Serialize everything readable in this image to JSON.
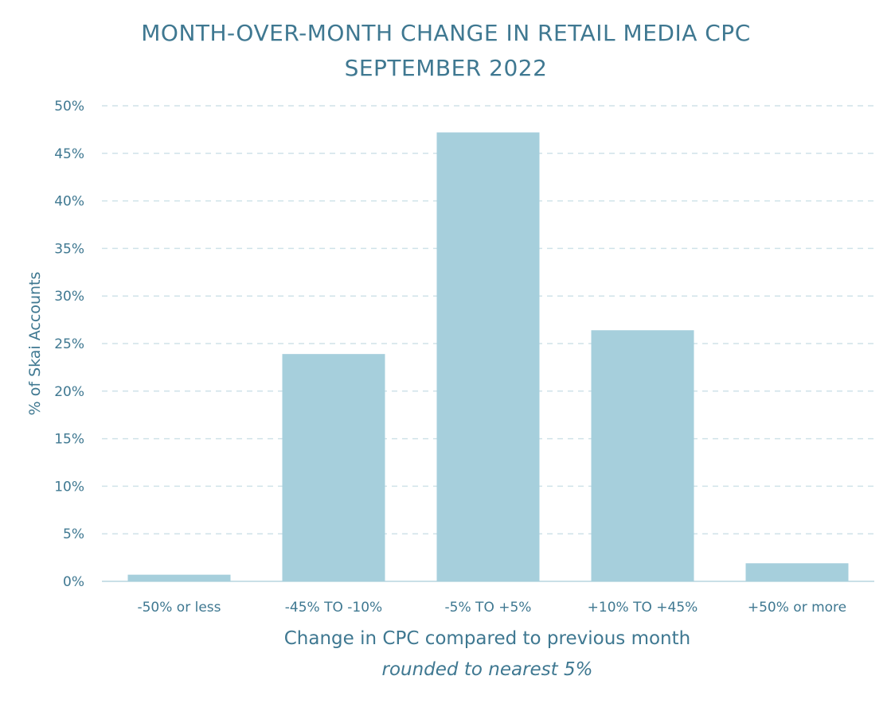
{
  "chart_data": {
    "type": "bar",
    "title": "MONTH-OVER-MONTH CHANGE IN RETAIL MEDIA CPC",
    "subtitle": "SEPTEMBER 2022",
    "xlabel": "Change in CPC compared to previous month",
    "xlabel_note": "rounded to nearest 5%",
    "ylabel": "% of Skai Accounts",
    "categories": [
      "-50% or less",
      "-45% TO -10%",
      "-5% TO +5%",
      "+10% TO +45%",
      "+50% or more"
    ],
    "values": [
      0.7,
      23.9,
      47.2,
      26.4,
      1.9
    ],
    "ylim": [
      0,
      50
    ],
    "yticks": [
      0,
      5,
      10,
      15,
      20,
      25,
      30,
      35,
      40,
      45,
      50
    ],
    "ytick_labels": [
      "0%",
      "5%",
      "10%",
      "15%",
      "20%",
      "25%",
      "30%",
      "35%",
      "40%",
      "45%",
      "50%"
    ],
    "grid": true,
    "legend": "none",
    "colors": {
      "bar": "#a6cfdc",
      "text": "#3f7891",
      "grid": "#cfe2e9",
      "axis": "#b7d5df"
    }
  }
}
